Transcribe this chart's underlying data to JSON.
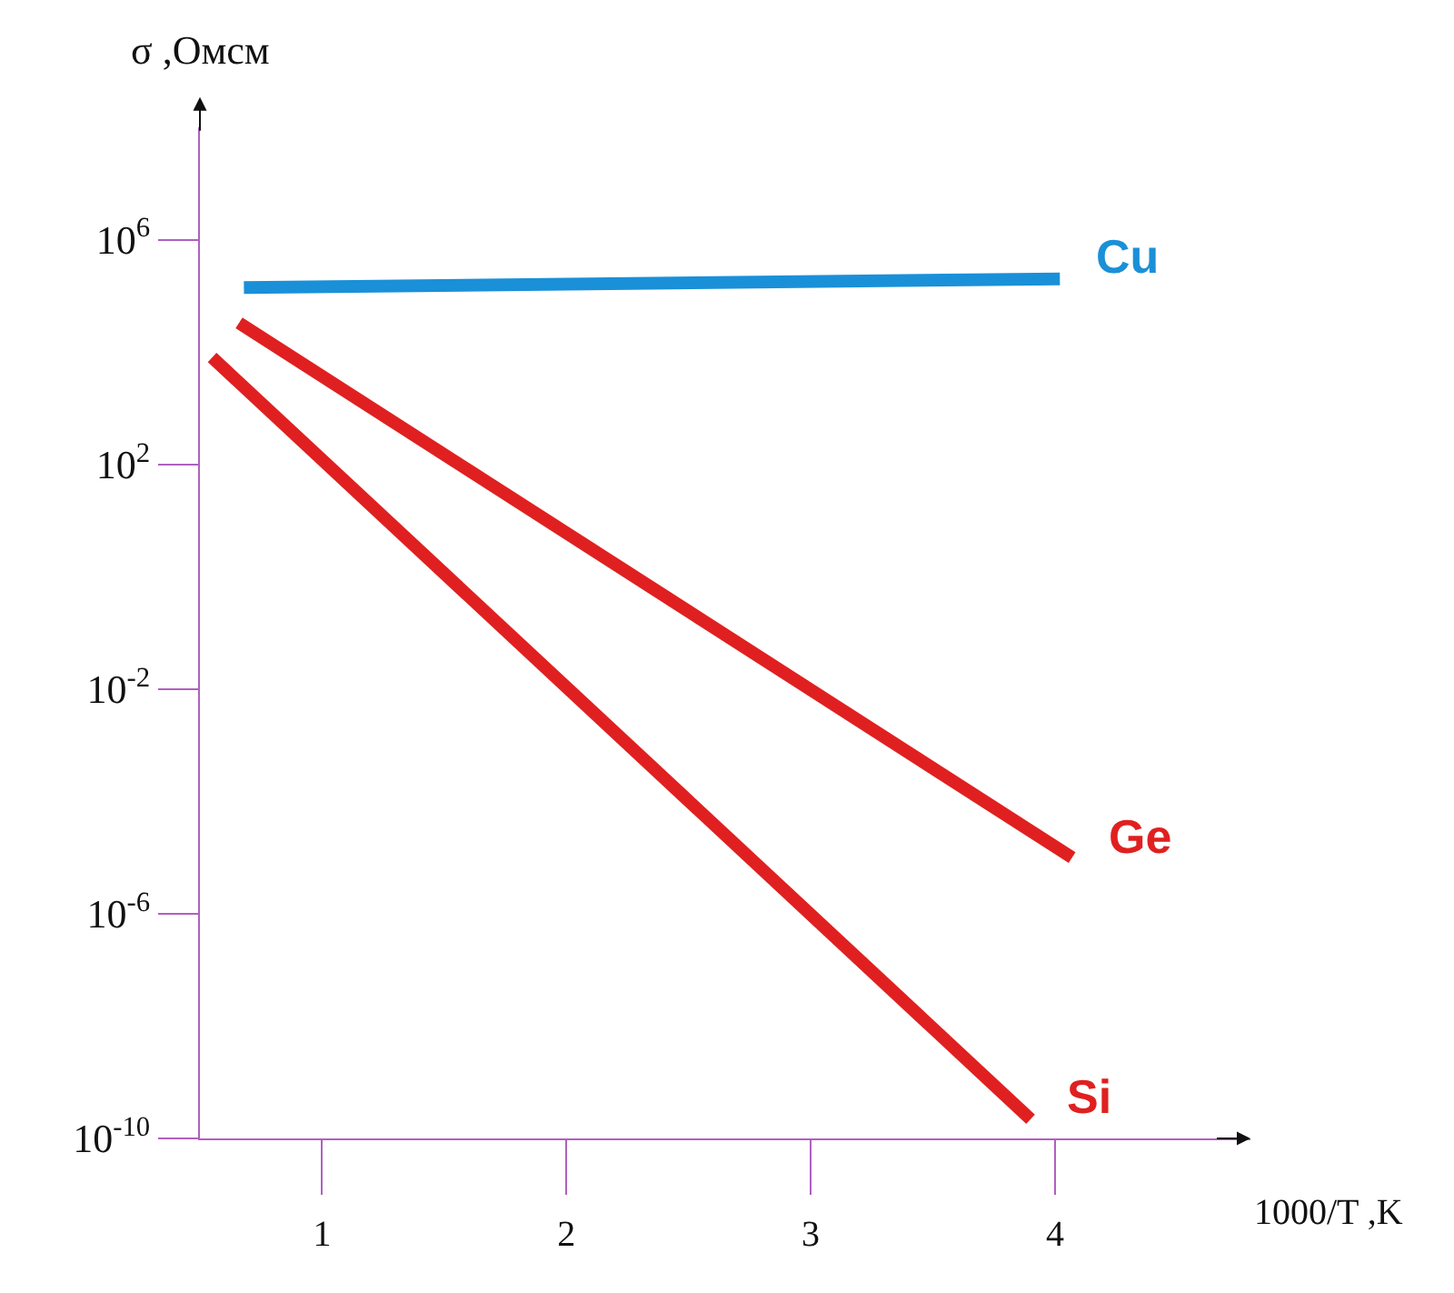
{
  "chart_data": {
    "type": "line",
    "xlabel": "1000/T ,K",
    "ylabel": "σ ,Омсм",
    "log": "y",
    "legend": false,
    "marker": "none",
    "line_style": "solid",
    "xlim": [
      0.5,
      4.8
    ],
    "xticks": [
      1,
      2,
      3,
      4
    ],
    "ylim": [
      1e-10,
      100000000.0
    ],
    "yticks": [
      {
        "value": 1000000.0,
        "label": "10$^{6}$"
      },
      {
        "value": 100,
        "label": "10$^{2}$"
      },
      {
        "value": 0.01,
        "label": "10$^{-2}$"
      },
      {
        "value": 1e-06,
        "label": "10$^{-6}$"
      },
      {
        "value": 1e-10,
        "label": "10$^{-10}$"
      }
    ],
    "series": [
      {
        "name": "Cu",
        "color": "#1a90d8",
        "x": [
          0.68,
          4.02
        ],
        "values": [
          140000.0,
          200000.0
        ]
      },
      {
        "name": "Ge",
        "color": "#e02020",
        "x": [
          0.66,
          4.07
        ],
        "values": [
          33000.0,
          1e-05
        ]
      },
      {
        "name": "Si",
        "color": "#e02020",
        "x": [
          0.55,
          3.9
        ],
        "values": [
          8000.0,
          2.2e-10
        ]
      }
    ]
  }
}
